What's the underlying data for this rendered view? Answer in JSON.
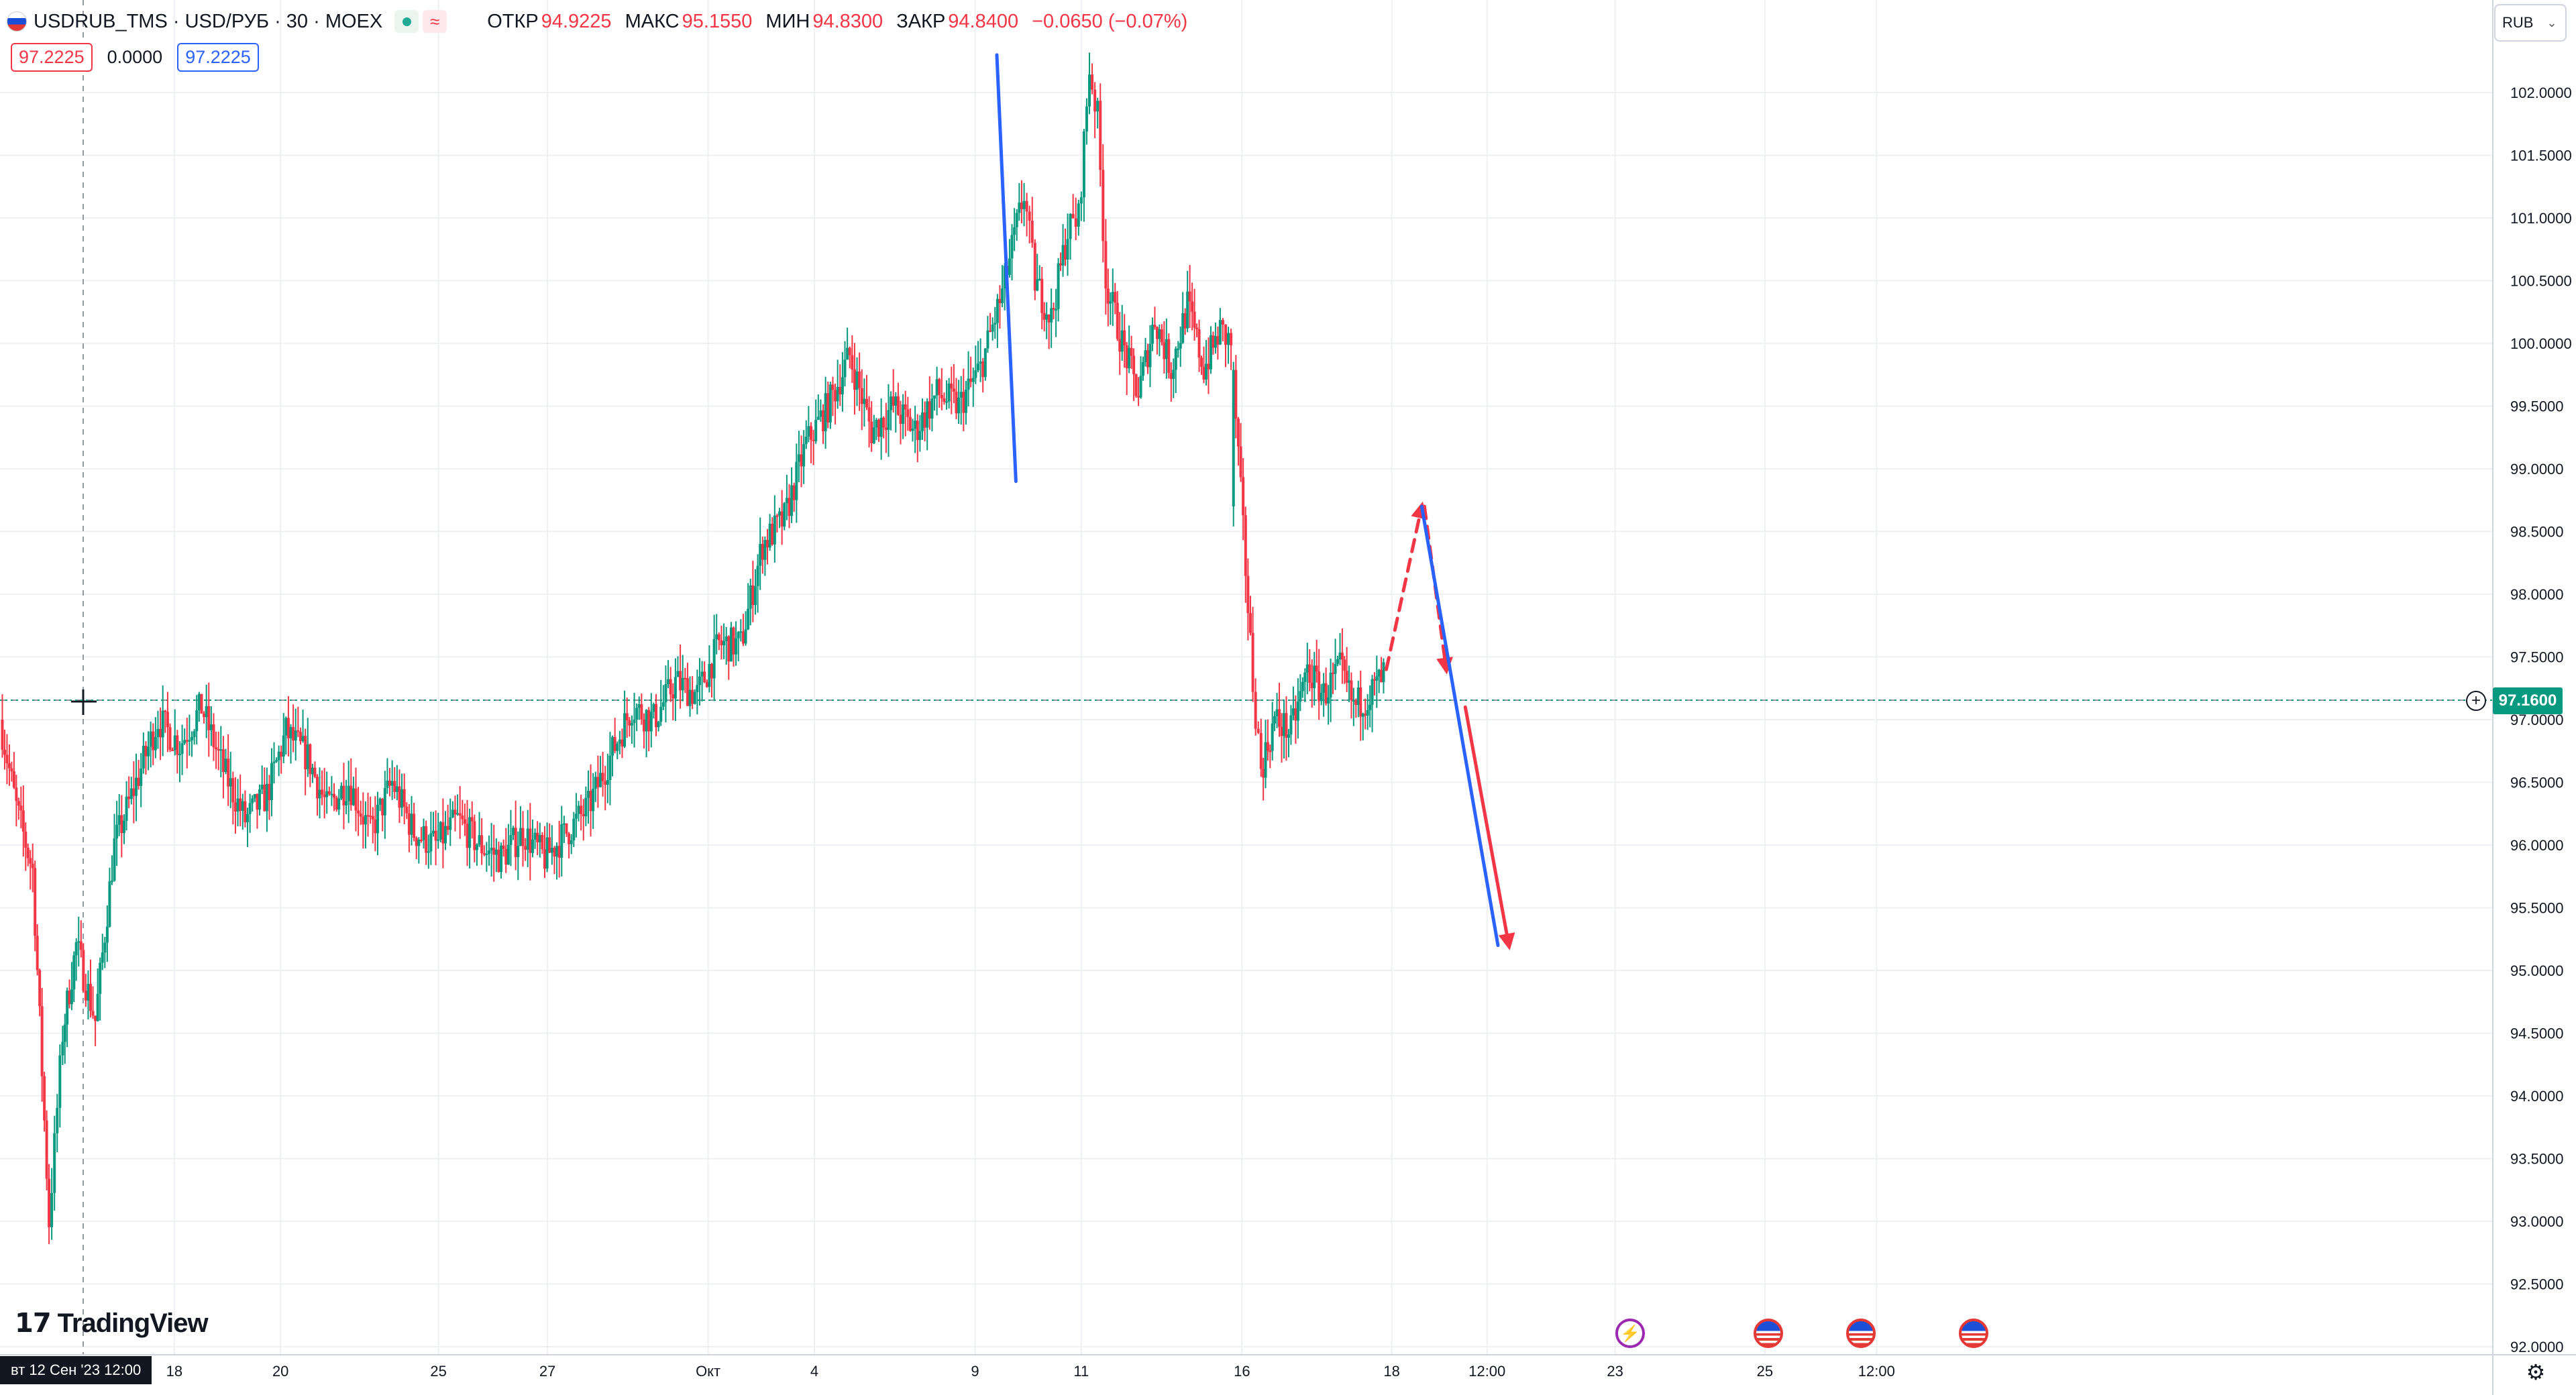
{
  "header": {
    "symbol": "USDRUB_TMS · USD/РУБ · 30 · MOEX",
    "open_label": "ОТКР",
    "open": "94.9225",
    "high_label": "МАКС",
    "high": "95.1550",
    "low_label": "МИН",
    "low": "94.8300",
    "close_label": "ЗАКР",
    "close": "94.8400",
    "change": "−0.0650 (−0.07%)",
    "bid": "97.2225",
    "spread": "0.0000",
    "ask": "97.2225"
  },
  "currency_button": "RUB",
  "logo_text": "TradingView",
  "crosshair_date": "вт 12 Сен '23   12:00",
  "last_price": "97.1600",
  "colors": {
    "up": "#089981",
    "down": "#f23645",
    "blue_line": "#2962ff",
    "red_line": "#f23645",
    "grid": "#eef0f3"
  },
  "events": [
    {
      "type": "lightning",
      "label": "⚡"
    },
    {
      "type": "us-flag"
    },
    {
      "type": "us-flag"
    },
    {
      "type": "us-flag"
    }
  ],
  "chart_data": {
    "type": "candlestick",
    "ylim": [
      92.0,
      102.5
    ],
    "y_ticks": [
      "102.0000",
      "101.5000",
      "101.0000",
      "100.5000",
      "100.0000",
      "99.5000",
      "99.0000",
      "98.5000",
      "98.0000",
      "97.5000",
      "97.0000",
      "96.5000",
      "96.0000",
      "95.5000",
      "95.0000",
      "94.5000",
      "94.0000",
      "93.5000",
      "93.0000",
      "92.5000",
      "92.0000"
    ],
    "x_ticks": [
      {
        "label": "18",
        "t": 6.4
      },
      {
        "label": "20",
        "t": 10.3
      },
      {
        "label": "25",
        "t": 16.1
      },
      {
        "label": "27",
        "t": 20.1
      },
      {
        "label": "Окт",
        "t": 26.0
      },
      {
        "label": "4",
        "t": 29.9
      },
      {
        "label": "9",
        "t": 35.8
      },
      {
        "label": "11",
        "t": 39.7
      },
      {
        "label": "16",
        "t": 45.6
      },
      {
        "label": "18",
        "t": 51.1
      },
      {
        "label": "12:00",
        "t": 54.6
      },
      {
        "label": "23",
        "t": 59.3
      },
      {
        "label": "25",
        "t": 64.8
      },
      {
        "label": "12:00",
        "t": 68.9
      }
    ],
    "price_path": [
      [
        0,
        97.0
      ],
      [
        0.6,
        96.3
      ],
      [
        1.2,
        95.8
      ],
      [
        1.8,
        93.0
      ],
      [
        2.3,
        94.5
      ],
      [
        2.8,
        95.2
      ],
      [
        3.5,
        94.6
      ],
      [
        4.2,
        96.0
      ],
      [
        5.0,
        96.5
      ],
      [
        5.8,
        97.0
      ],
      [
        6.6,
        96.8
      ],
      [
        7.4,
        97.1
      ],
      [
        8.2,
        96.6
      ],
      [
        9.0,
        96.2
      ],
      [
        9.8,
        96.4
      ],
      [
        10.5,
        96.9
      ],
      [
        11.3,
        96.7
      ],
      [
        12.0,
        96.3
      ],
      [
        12.8,
        96.5
      ],
      [
        13.6,
        96.1
      ],
      [
        14.4,
        96.5
      ],
      [
        15.2,
        96.1
      ],
      [
        16.0,
        96.0
      ],
      [
        16.8,
        96.2
      ],
      [
        17.6,
        96.0
      ],
      [
        18.4,
        95.9
      ],
      [
        19.2,
        96.1
      ],
      [
        20.0,
        95.9
      ],
      [
        20.8,
        96.1
      ],
      [
        21.6,
        96.3
      ],
      [
        22.4,
        96.7
      ],
      [
        23.2,
        97.1
      ],
      [
        24.0,
        97.0
      ],
      [
        24.8,
        97.3
      ],
      [
        25.6,
        97.2
      ],
      [
        26.4,
        97.6
      ],
      [
        27.2,
        97.6
      ],
      [
        28.0,
        98.4
      ],
      [
        28.8,
        98.6
      ],
      [
        29.6,
        99.2
      ],
      [
        30.4,
        99.5
      ],
      [
        31.2,
        99.9
      ],
      [
        32.0,
        99.3
      ],
      [
        32.8,
        99.5
      ],
      [
        33.6,
        99.3
      ],
      [
        34.4,
        99.6
      ],
      [
        35.2,
        99.5
      ],
      [
        36.0,
        99.8
      ],
      [
        36.8,
        100.4
      ],
      [
        37.6,
        101.2
      ],
      [
        38.0,
        100.5
      ],
      [
        38.6,
        100.2
      ],
      [
        39.2,
        100.9
      ],
      [
        39.6,
        101.0
      ],
      [
        40.0,
        102.2
      ],
      [
        40.3,
        101.8
      ],
      [
        40.6,
        100.5
      ],
      [
        41.2,
        100.0
      ],
      [
        41.8,
        99.6
      ],
      [
        42.4,
        100.2
      ],
      [
        43.0,
        99.8
      ],
      [
        43.6,
        100.3
      ],
      [
        44.2,
        99.8
      ],
      [
        44.8,
        100.1
      ],
      [
        45.2,
        100.0
      ],
      [
        46.0,
        97.3
      ],
      [
        46.3,
        96.6
      ],
      [
        46.8,
        97.0
      ],
      [
        47.4,
        96.9
      ],
      [
        48.0,
        97.4
      ],
      [
        48.6,
        97.2
      ],
      [
        49.2,
        97.4
      ],
      [
        49.7,
        97.1
      ],
      [
        50.3,
        97.2
      ],
      [
        50.8,
        97.35
      ]
    ],
    "drawings": [
      {
        "type": "line",
        "color": "blue",
        "from": [
          36.6,
          102.3
        ],
        "to": [
          37.3,
          98.9
        ]
      },
      {
        "type": "dashed-arrow",
        "color": "red",
        "from": [
          50.9,
          97.4
        ],
        "to": [
          52.2,
          98.7
        ]
      },
      {
        "type": "dashed-arrow",
        "color": "red",
        "from": [
          52.3,
          98.7
        ],
        "to": [
          53.1,
          97.4
        ]
      },
      {
        "type": "line",
        "color": "blue",
        "from": [
          52.2,
          98.7
        ],
        "to": [
          55.0,
          95.2
        ]
      },
      {
        "type": "arrow",
        "color": "red",
        "from": [
          53.8,
          97.1
        ],
        "to": [
          55.4,
          95.2
        ]
      }
    ]
  }
}
